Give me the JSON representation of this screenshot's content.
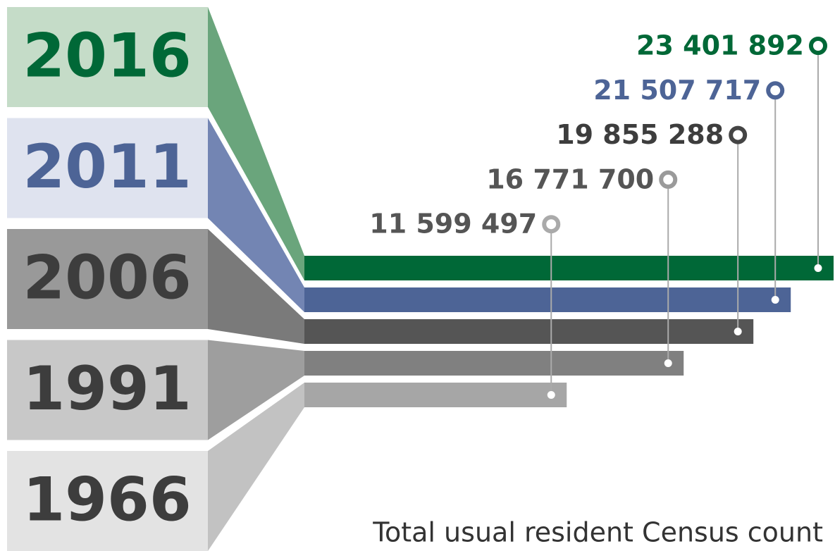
{
  "chart_data": {
    "type": "bar",
    "orientation": "horizontal",
    "title": "Total usual resident Census count",
    "categories": [
      "2016",
      "2011",
      "2006",
      "1991",
      "1966"
    ],
    "values": [
      23401892,
      21507717,
      19855288,
      16771700,
      11599497
    ],
    "value_labels": [
      "23 401 892",
      "21 507 717",
      "19 855 288",
      "16 771 700",
      "11 599 497"
    ],
    "colors": [
      "#006837",
      "#4d6496",
      "#555555",
      "#808080",
      "#a6a6a6"
    ]
  }
}
